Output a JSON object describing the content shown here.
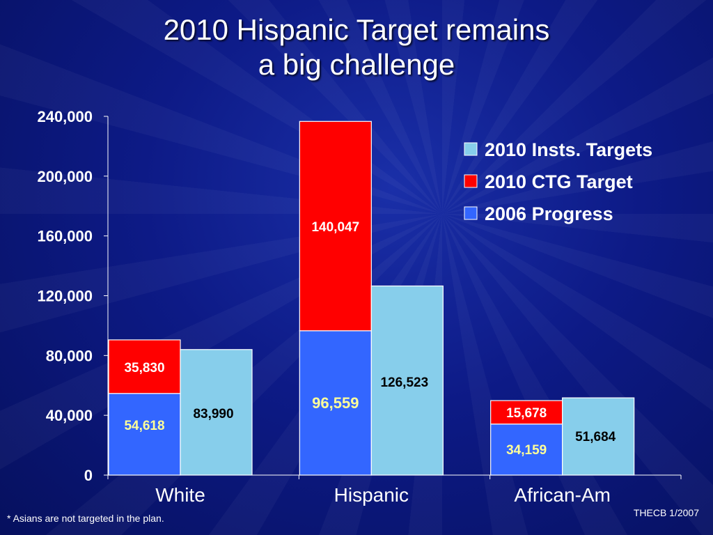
{
  "slide": {
    "title_line1": "2010 Hispanic Target remains",
    "title_line2": "a big challenge",
    "footnote": "* Asians are not targeted in the plan.",
    "source": "THECB 1/2007"
  },
  "chart_data": {
    "type": "bar",
    "categories": [
      "White",
      "Hispanic",
      "African-Am"
    ],
    "ylim": [
      0,
      240000
    ],
    "yticks": [
      0,
      40000,
      80000,
      120000,
      160000,
      200000,
      240000
    ],
    "ytick_labels": [
      "0",
      "40,000",
      "80,000",
      "120,000",
      "160,000",
      "200,000",
      "240,000"
    ],
    "stacked_series": [
      {
        "name": "2006 Progress",
        "color": "#3366ff",
        "label_color": "#ffff99",
        "values": [
          54618,
          96559,
          34159
        ],
        "labels": [
          "54,618",
          "96,559",
          "34,159"
        ]
      },
      {
        "name": "2010 CTG Target",
        "color": "#ff0000",
        "label_color": "#ffffff",
        "values": [
          35830,
          140047,
          15678
        ],
        "labels": [
          "35,830",
          "140,047",
          "15,678"
        ]
      }
    ],
    "side_series": {
      "name": "2010 Insts. Targets",
      "color": "#87ceeb",
      "label_color": "#000000",
      "values": [
        83990,
        126523,
        51684
      ],
      "labels": [
        "83,990",
        "126,523",
        "51,684"
      ]
    },
    "legend": {
      "placement": "top-right",
      "entries": [
        {
          "name": "2010 Insts. Targets",
          "color": "#87ceeb"
        },
        {
          "name": "2010 CTG Target",
          "color": "#ff0000"
        },
        {
          "name": "2006 Progress",
          "color": "#3366ff"
        }
      ]
    }
  }
}
